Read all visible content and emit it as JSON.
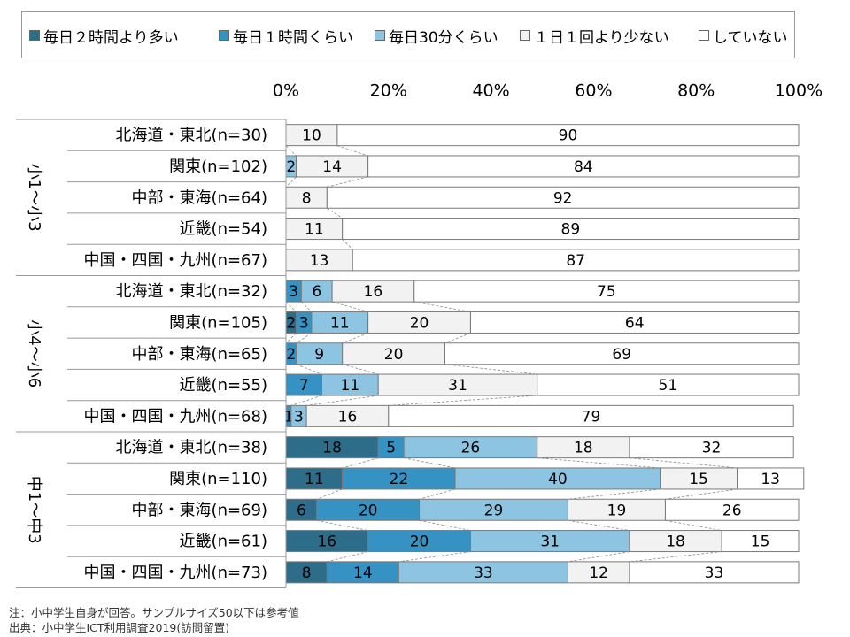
{
  "chart_data": {
    "type": "bar",
    "orientation": "horizontal",
    "stacked": true,
    "percent_scale": true,
    "xlim": [
      0,
      100
    ],
    "x_ticks": [
      "0%",
      "20%",
      "40%",
      "60%",
      "80%",
      "100%"
    ],
    "grid": false,
    "legend_position": "top",
    "series": [
      {
        "name": "毎日２時間より多い",
        "color": "#2e6d8a"
      },
      {
        "name": "毎日１時間くらい",
        "color": "#3592c2"
      },
      {
        "name": "毎日30分くらい",
        "color": "#8cc4e1"
      },
      {
        "name": "１日１回より少ない",
        "color": "#f2f2f2"
      },
      {
        "name": "していない",
        "color": "#ffffff"
      }
    ],
    "groups": [
      {
        "label": "小1～小3",
        "rows": [
          {
            "label": "北海道・東北(n=30)",
            "values": [
              0,
              0,
              0,
              10,
              90
            ]
          },
          {
            "label": "関東(n=102)",
            "values": [
              0,
              0,
              2,
              14,
              84
            ]
          },
          {
            "label": "中部・東海(n=64)",
            "values": [
              0,
              0,
              0,
              8,
              92
            ]
          },
          {
            "label": "近畿(n=54)",
            "values": [
              0,
              0,
              0,
              11,
              89
            ]
          },
          {
            "label": "中国・四国・九州(n=67)",
            "values": [
              0,
              0,
              0,
              13,
              87
            ]
          }
        ]
      },
      {
        "label": "小4～小6",
        "rows": [
          {
            "label": "北海道・東北(n=32)",
            "values": [
              0,
              3,
              6,
              16,
              75
            ]
          },
          {
            "label": "関東(n=105)",
            "values": [
              2,
              3,
              11,
              20,
              64
            ]
          },
          {
            "label": "中部・東海(n=65)",
            "values": [
              0,
              2,
              9,
              20,
              69
            ]
          },
          {
            "label": "近畿(n=55)",
            "values": [
              0,
              7,
              11,
              31,
              51
            ]
          },
          {
            "label": "中国・四国・九州(n=68)",
            "values": [
              0,
              1,
              3,
              16,
              79
            ]
          }
        ]
      },
      {
        "label": "中1～中3",
        "rows": [
          {
            "label": "北海道・東北(n=38)",
            "values": [
              18,
              5,
              26,
              18,
              32
            ]
          },
          {
            "label": "関東(n=110)",
            "values": [
              11,
              22,
              40,
              15,
              13
            ]
          },
          {
            "label": "中部・東海(n=69)",
            "values": [
              6,
              20,
              29,
              19,
              26
            ]
          },
          {
            "label": "近畿(n=61)",
            "values": [
              16,
              20,
              31,
              18,
              15
            ]
          },
          {
            "label": "中国・四国・九州(n=73)",
            "values": [
              8,
              14,
              33,
              12,
              33
            ]
          }
        ]
      }
    ]
  },
  "footnotes": {
    "note": "注：小中学生自身が回答。サンプルサイズ50以下は参考値",
    "source": "出典：小中学生ICT利用調査2019(訪問留置)"
  }
}
